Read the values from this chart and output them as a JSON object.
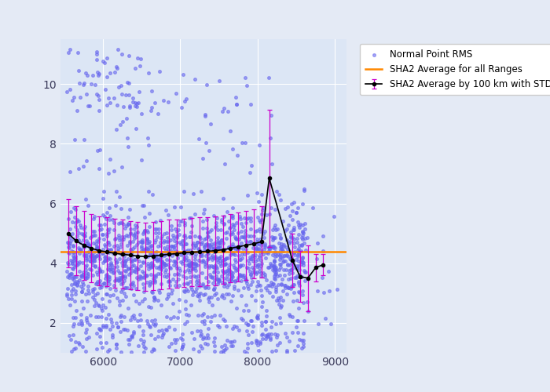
{
  "title": "",
  "xlabel": "",
  "ylabel": "",
  "xlim": [
    5450,
    9150
  ],
  "ylim": [
    1.0,
    11.5
  ],
  "yticks": [
    2,
    4,
    6,
    8,
    10
  ],
  "xticks": [
    6000,
    7000,
    8000,
    9000
  ],
  "overall_average": 4.38,
  "scatter_color": "#6666ee",
  "scatter_alpha": 0.55,
  "scatter_size": 7,
  "errbar_color": "#cc00cc",
  "avg_line_color": "#000000",
  "overall_avg_color": "#ff8800",
  "background_color": "#dce6f5",
  "outer_background": "#e4eaf5",
  "grid_color": "#ffffff",
  "bin_centers": [
    5550,
    5650,
    5750,
    5850,
    5950,
    6050,
    6150,
    6250,
    6350,
    6450,
    6550,
    6650,
    6750,
    6850,
    6950,
    7050,
    7150,
    7250,
    7350,
    7450,
    7550,
    7650,
    7750,
    7850,
    7950,
    8050,
    8150,
    8450,
    8550,
    8650,
    8750,
    8850
  ],
  "bin_means": [
    5.0,
    4.75,
    4.6,
    4.5,
    4.42,
    4.38,
    4.33,
    4.3,
    4.27,
    4.24,
    4.22,
    4.24,
    4.27,
    4.3,
    4.32,
    4.35,
    4.37,
    4.38,
    4.4,
    4.42,
    4.45,
    4.5,
    4.55,
    4.6,
    4.65,
    4.72,
    6.85,
    4.1,
    3.55,
    3.5,
    3.85,
    3.95
  ],
  "bin_stds": [
    1.15,
    1.15,
    1.15,
    1.15,
    1.15,
    1.15,
    1.15,
    1.15,
    1.15,
    1.15,
    1.15,
    1.15,
    1.15,
    1.15,
    1.15,
    1.15,
    1.15,
    1.15,
    1.15,
    1.15,
    1.15,
    1.15,
    1.15,
    1.15,
    1.15,
    1.2,
    2.3,
    0.9,
    0.85,
    1.1,
    0.45,
    0.35
  ],
  "seed": 42
}
